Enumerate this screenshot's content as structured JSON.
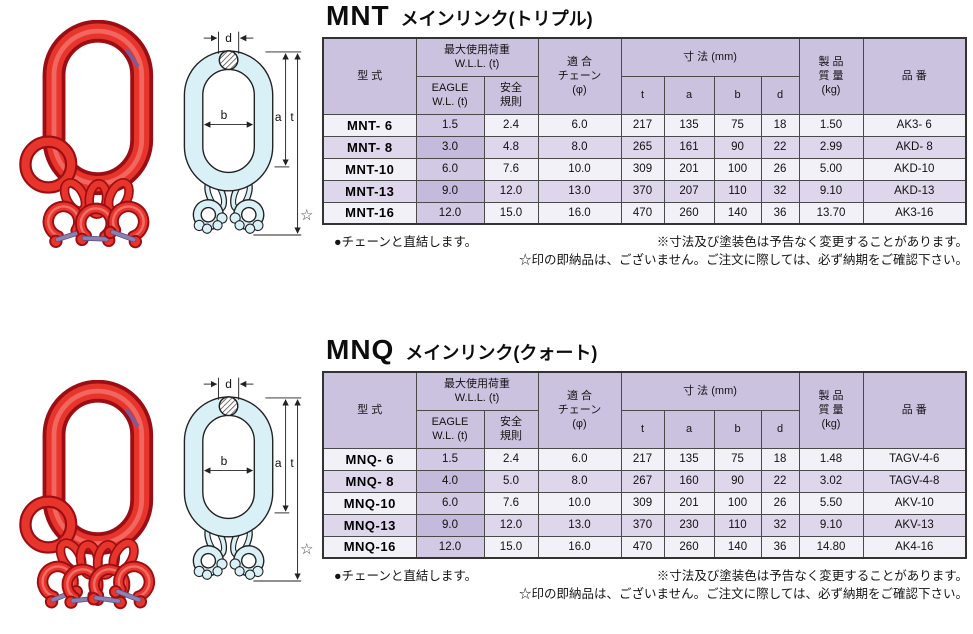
{
  "colors": {
    "table_header_bg": "#cbc2e0",
    "row_light": "#f3f1f8",
    "row_dark": "#ded7eb",
    "eagle_column_tint": "#c4badb",
    "product_red": "#e8352c",
    "diagram_cyan": "#d9f0f7"
  },
  "diagram_labels": {
    "d": "d",
    "b": "b",
    "a": "a",
    "t": "t"
  },
  "table_headers": {
    "model": "型 式",
    "wll_group": "最大使用荷重\nW.L.L. (t)",
    "eagle": "EAGLE\nW.L. (t)",
    "safety": "安全\n規則",
    "chain": "適 合\nチェーン\n(φ)",
    "dims_group": "寸 法 (mm)",
    "t": "t",
    "a": "a",
    "b": "b",
    "d": "d",
    "mass": "製 品\n質 量\n(kg)",
    "part": "品 番"
  },
  "footnotes": {
    "left": "●チェーンと直結します。",
    "right1": "※寸法及び塗装色は予告なく変更することがあります。",
    "right2": "☆印の即納品は、ございません。ご注文に際しては、必ず納期をご確認下さい。"
  },
  "star_mark": "☆",
  "mnt": {
    "code": "MNT",
    "title": "メインリンク(トリプル)",
    "rows": [
      {
        "model": "MNT- 6",
        "eagle": "1.5",
        "safety": "2.4",
        "chain": "6.0",
        "t": "217",
        "a": "135",
        "b": "75",
        "d": "18",
        "mass": "1.50",
        "part": "AK3- 6"
      },
      {
        "model": "MNT- 8",
        "eagle": "3.0",
        "safety": "4.8",
        "chain": "8.0",
        "t": "265",
        "a": "161",
        "b": "90",
        "d": "22",
        "mass": "2.99",
        "part": "AKD- 8"
      },
      {
        "model": "MNT-10",
        "eagle": "6.0",
        "safety": "7.6",
        "chain": "10.0",
        "t": "309",
        "a": "201",
        "b": "100",
        "d": "26",
        "mass": "5.00",
        "part": "AKD-10"
      },
      {
        "model": "MNT-13",
        "eagle": "9.0",
        "safety": "12.0",
        "chain": "13.0",
        "t": "370",
        "a": "207",
        "b": "110",
        "d": "32",
        "mass": "9.10",
        "part": "AKD-13"
      },
      {
        "model": "MNT-16",
        "eagle": "12.0",
        "safety": "15.0",
        "chain": "16.0",
        "t": "470",
        "a": "260",
        "b": "140",
        "d": "36",
        "mass": "13.70",
        "part": "AK3-16"
      }
    ]
  },
  "mnq": {
    "code": "MNQ",
    "title": "メインリンク(クォート)",
    "rows": [
      {
        "model": "MNQ- 6",
        "eagle": "1.5",
        "safety": "2.4",
        "chain": "6.0",
        "t": "217",
        "a": "135",
        "b": "75",
        "d": "18",
        "mass": "1.48",
        "part": "TAGV-4-6"
      },
      {
        "model": "MNQ- 8",
        "eagle": "4.0",
        "safety": "5.0",
        "chain": "8.0",
        "t": "267",
        "a": "160",
        "b": "90",
        "d": "22",
        "mass": "3.02",
        "part": "TAGV-4-8"
      },
      {
        "model": "MNQ-10",
        "eagle": "6.0",
        "safety": "7.6",
        "chain": "10.0",
        "t": "309",
        "a": "201",
        "b": "100",
        "d": "26",
        "mass": "5.50",
        "part": "AKV-10"
      },
      {
        "model": "MNQ-13",
        "eagle": "9.0",
        "safety": "12.0",
        "chain": "13.0",
        "t": "370",
        "a": "230",
        "b": "110",
        "d": "32",
        "mass": "9.10",
        "part": "AKV-13"
      },
      {
        "model": "MNQ-16",
        "eagle": "12.0",
        "safety": "15.0",
        "chain": "16.0",
        "t": "470",
        "a": "260",
        "b": "140",
        "d": "36",
        "mass": "14.80",
        "part": "AK4-16"
      }
    ]
  }
}
